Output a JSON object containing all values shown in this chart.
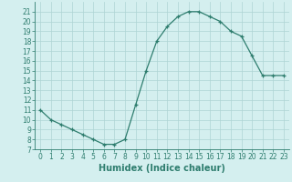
{
  "x": [
    0,
    1,
    2,
    3,
    4,
    5,
    6,
    7,
    8,
    9,
    10,
    11,
    12,
    13,
    14,
    15,
    16,
    17,
    18,
    19,
    20,
    21,
    22,
    23
  ],
  "y": [
    11,
    10,
    9.5,
    9,
    8.5,
    8,
    7.5,
    7.5,
    8,
    11.5,
    15,
    18,
    19.5,
    20.5,
    21,
    21,
    20.5,
    20,
    19,
    18.5,
    16.5,
    14.5,
    14.5,
    14.5
  ],
  "xlim": [
    -0.5,
    23.5
  ],
  "ylim": [
    7,
    22
  ],
  "yticks": [
    7,
    8,
    9,
    10,
    11,
    12,
    13,
    14,
    15,
    16,
    17,
    18,
    19,
    20,
    21
  ],
  "xticks": [
    0,
    1,
    2,
    3,
    4,
    5,
    6,
    7,
    8,
    9,
    10,
    11,
    12,
    13,
    14,
    15,
    16,
    17,
    18,
    19,
    20,
    21,
    22,
    23
  ],
  "xlabel": "Humidex (Indice chaleur)",
  "line_color": "#2e7d6e",
  "marker": "+",
  "bg_color": "#d4efef",
  "grid_color": "#aed4d4",
  "tick_label_fontsize": 5.5,
  "xlabel_fontsize": 7
}
